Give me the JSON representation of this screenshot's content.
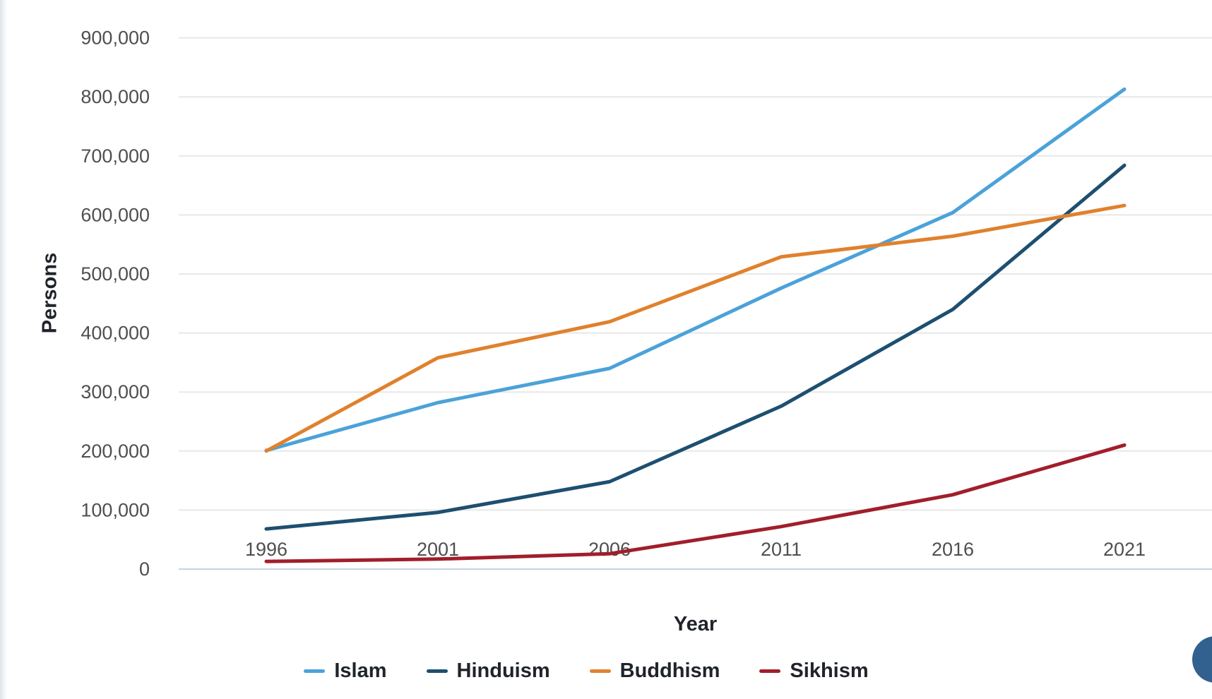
{
  "chart_data": {
    "type": "line",
    "x": [
      1996,
      2001,
      2006,
      2011,
      2016,
      2021
    ],
    "x_tick_labels": [
      "1996",
      "2001",
      "2006",
      "2011",
      "2016",
      "2021"
    ],
    "series": [
      {
        "name": "Islam",
        "color": "#4BA2D9",
        "values": [
          201000,
          282000,
          340000,
          476000,
          604000,
          813000
        ]
      },
      {
        "name": "Hinduism",
        "color": "#1D4F70",
        "values": [
          68000,
          96000,
          148000,
          276000,
          440000,
          684000
        ]
      },
      {
        "name": "Buddhism",
        "color": "#E0812D",
        "values": [
          200000,
          358000,
          419000,
          529000,
          564000,
          616000
        ]
      },
      {
        "name": "Sikhism",
        "color": "#A11E2B",
        "values": [
          13000,
          17000,
          26000,
          72000,
          126000,
          210000
        ]
      }
    ],
    "xlabel": "Year",
    "ylabel": "Persons",
    "ylim": [
      0,
      900000
    ],
    "y_tick_step": 100000,
    "y_tick_labels": [
      "0",
      "100,000",
      "200,000",
      "300,000",
      "400,000",
      "500,000",
      "600,000",
      "700,000",
      "800,000",
      "900,000"
    ],
    "grid": true,
    "legend_position": "bottom"
  },
  "colors": {
    "gridline": "#e8e8e8",
    "zero_axis_line": "#c7d2e2",
    "tick_text": "#4f4f4f",
    "title_text": "#20242a",
    "fab": "#33618F"
  }
}
